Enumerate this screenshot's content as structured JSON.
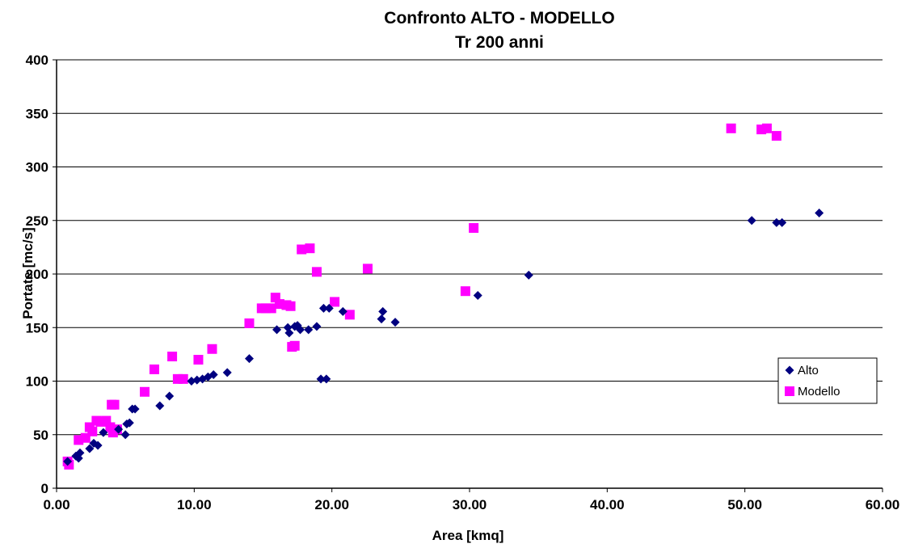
{
  "chart_data": {
    "type": "scatter",
    "title": "Confronto ALTO - MODELLO",
    "subtitle": "Tr 200 anni",
    "xlabel": "Area [kmq]",
    "ylabel": "Portate [mc/s]",
    "xlim": [
      0,
      60
    ],
    "ylim": [
      0,
      400
    ],
    "x_ticks": [
      "0.00",
      "10.00",
      "20.00",
      "30.00",
      "40.00",
      "50.00",
      "60.00"
    ],
    "y_ticks": [
      "0",
      "50",
      "100",
      "150",
      "200",
      "250",
      "300",
      "350",
      "400"
    ],
    "grid": "horizontal",
    "legend_position": "right",
    "series": [
      {
        "name": "Alto",
        "marker": "diamond",
        "color": "#000080",
        "points": [
          [
            0.8,
            25
          ],
          [
            1.4,
            30
          ],
          [
            1.6,
            28
          ],
          [
            1.7,
            33
          ],
          [
            2.4,
            37
          ],
          [
            2.7,
            42
          ],
          [
            3.0,
            40
          ],
          [
            3.4,
            52
          ],
          [
            4.5,
            55
          ],
          [
            5.0,
            50
          ],
          [
            5.1,
            60
          ],
          [
            5.3,
            61
          ],
          [
            5.5,
            74
          ],
          [
            5.7,
            74
          ],
          [
            7.5,
            77
          ],
          [
            8.2,
            86
          ],
          [
            9.8,
            100
          ],
          [
            10.2,
            101
          ],
          [
            10.6,
            102
          ],
          [
            11.0,
            104
          ],
          [
            11.4,
            106
          ],
          [
            12.4,
            108
          ],
          [
            14.0,
            121
          ],
          [
            16.0,
            148
          ],
          [
            16.8,
            150
          ],
          [
            16.9,
            145
          ],
          [
            17.3,
            151
          ],
          [
            17.5,
            152
          ],
          [
            17.7,
            148
          ],
          [
            18.3,
            148
          ],
          [
            18.9,
            151
          ],
          [
            19.2,
            102
          ],
          [
            19.4,
            168
          ],
          [
            19.6,
            102
          ],
          [
            19.8,
            168
          ],
          [
            20.8,
            165
          ],
          [
            23.6,
            158
          ],
          [
            23.7,
            165
          ],
          [
            24.6,
            155
          ],
          [
            30.6,
            180
          ],
          [
            34.3,
            199
          ],
          [
            50.5,
            250
          ],
          [
            52.3,
            248
          ],
          [
            52.7,
            248
          ],
          [
            55.4,
            257
          ]
        ]
      },
      {
        "name": "Modello",
        "marker": "square",
        "color": "#ff00ff",
        "points": [
          [
            0.8,
            25
          ],
          [
            0.9,
            22
          ],
          [
            1.6,
            45
          ],
          [
            2.1,
            47
          ],
          [
            2.4,
            57
          ],
          [
            2.6,
            53
          ],
          [
            2.9,
            63
          ],
          [
            3.2,
            62
          ],
          [
            3.6,
            63
          ],
          [
            3.9,
            57
          ],
          [
            4.0,
            78
          ],
          [
            4.1,
            52
          ],
          [
            4.2,
            78
          ],
          [
            4.4,
            55
          ],
          [
            6.4,
            90
          ],
          [
            7.1,
            111
          ],
          [
            8.4,
            123
          ],
          [
            8.8,
            102
          ],
          [
            9.2,
            102
          ],
          [
            10.3,
            120
          ],
          [
            11.3,
            130
          ],
          [
            14.0,
            154
          ],
          [
            14.9,
            168
          ],
          [
            15.2,
            168
          ],
          [
            15.6,
            168
          ],
          [
            15.9,
            178
          ],
          [
            16.2,
            172
          ],
          [
            16.7,
            171
          ],
          [
            17.0,
            170
          ],
          [
            17.1,
            132
          ],
          [
            17.3,
            133
          ],
          [
            17.8,
            223
          ],
          [
            18.4,
            224
          ],
          [
            18.9,
            202
          ],
          [
            20.2,
            174
          ],
          [
            21.3,
            162
          ],
          [
            22.6,
            205
          ],
          [
            29.7,
            184
          ],
          [
            30.3,
            243
          ],
          [
            49.0,
            336
          ],
          [
            51.2,
            335
          ],
          [
            51.6,
            336
          ],
          [
            52.3,
            329
          ]
        ]
      }
    ]
  }
}
